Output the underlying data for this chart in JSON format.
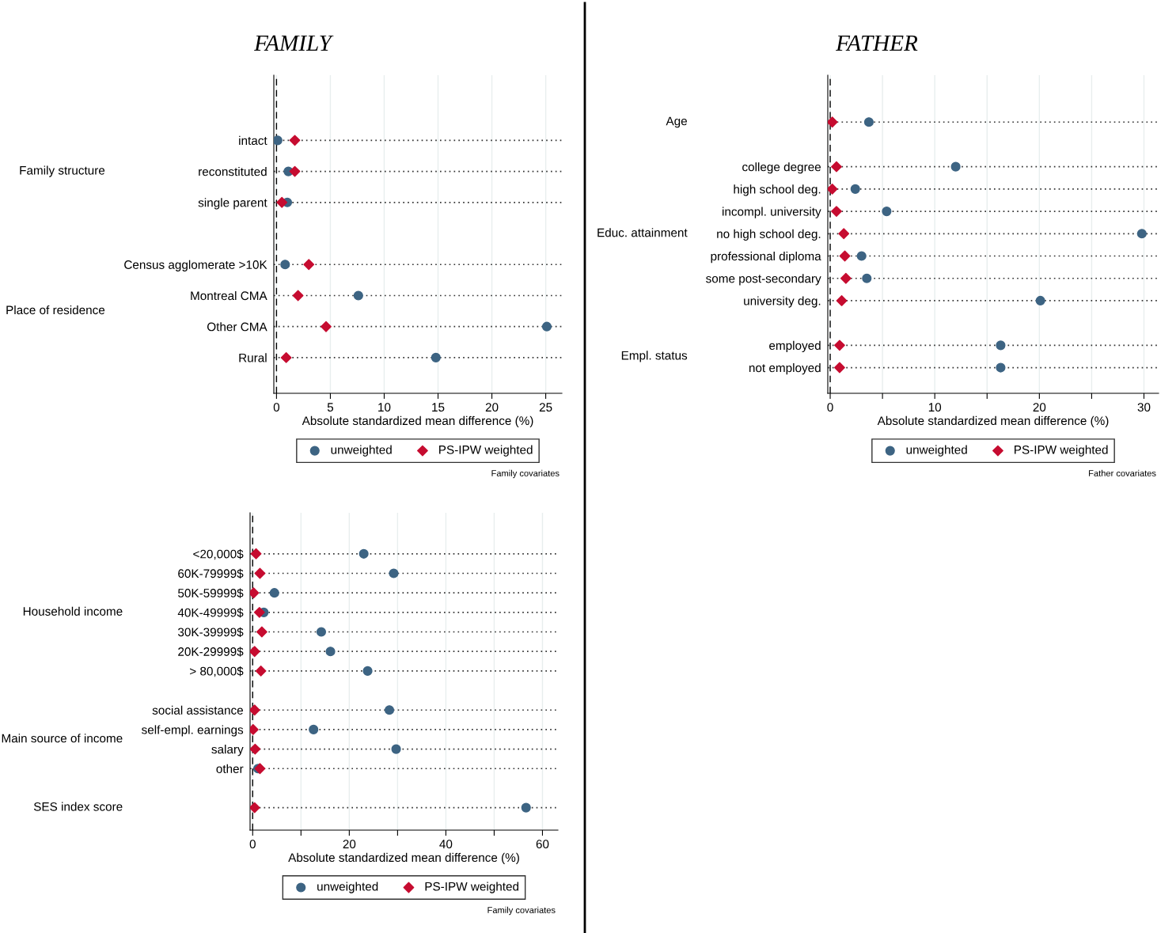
{
  "chart_data": [
    {
      "type": "scatter",
      "orientation": "horizontal",
      "title": "FAMILY",
      "xlabel": "Absolute standardized mean difference (%)",
      "categories": [
        "intact",
        "reconstituted",
        "single parent",
        null,
        "Census agglomerate >10K",
        "Montreal CMA",
        "Other CMA",
        "Rural"
      ],
      "series": [
        {
          "name": "unweighted",
          "color": "#3d6483",
          "marker": "circle",
          "values": [
            0.1,
            1.1,
            1.0,
            null,
            0.8,
            7.6,
            25.1,
            14.8
          ]
        },
        {
          "name": "PS-IPW weighted",
          "color": "#c60c30",
          "marker": "diamond",
          "values": [
            1.7,
            1.7,
            0.5,
            null,
            3.0,
            2.0,
            4.6,
            0.9
          ]
        }
      ],
      "xlim": [
        -0.25,
        26.5
      ],
      "xticks": [
        0,
        5,
        10,
        15,
        20,
        25
      ],
      "ref_lines": [
        {
          "axis": "x",
          "value": 0,
          "line_style": "dashed",
          "color": "#000000"
        }
      ],
      "grid": true,
      "legend": "bottom",
      "annotations": [
        "Family structure",
        "Place of residence",
        "Family covariates"
      ]
    },
    {
      "type": "scatter",
      "orientation": "horizontal",
      "title": "FATHER",
      "xlabel": "Absolute standardized mean difference (%)",
      "categories": [
        null,
        null,
        "college degree",
        "high school deg.",
        "incompl. university",
        "no high school deg.",
        "professional diploma",
        "some post-secondary",
        "university deg.",
        null,
        "employed",
        "not employed"
      ],
      "series": [
        {
          "name": "unweighted",
          "color": "#3d6483",
          "marker": "circle",
          "values": [
            3.7,
            null,
            12.0,
            2.4,
            5.4,
            29.8,
            3.0,
            3.5,
            20.1,
            null,
            16.3,
            16.3
          ]
        },
        {
          "name": "PS-IPW weighted",
          "color": "#c60c30",
          "marker": "diamond",
          "values": [
            0.2,
            null,
            0.6,
            0.2,
            0.6,
            1.3,
            1.4,
            1.5,
            1.1,
            null,
            0.9,
            0.9
          ]
        }
      ],
      "xlim": [
        -0.23,
        31.4
      ],
      "xticks": [
        0,
        {
          "value": 5,
          "label": null
        },
        10,
        {
          "value": 15,
          "label": null
        },
        20,
        {
          "value": 25,
          "label": null
        },
        30
      ],
      "ref_lines": [
        {
          "axis": "x",
          "value": 0,
          "line_style": "dashed",
          "color": "#000000"
        }
      ],
      "grid": true,
      "legend": "bottom",
      "annotations": [
        "Age",
        "Educ. attainment",
        "Empl. status",
        "Father covariates"
      ]
    },
    {
      "type": "scatter",
      "orientation": "horizontal",
      "xlabel": "Absolute standardized mean difference (%)",
      "categories": [
        "<20,000$",
        "60K-79999$",
        "50K-59999$",
        "40K-49999$",
        "30K-39999$",
        "20K-29999$",
        "> 80,000$",
        null,
        "social assistance",
        "self-empl. earnings",
        "salary",
        "other",
        null,
        null
      ],
      "series": [
        {
          "name": "unweighted",
          "color": "#3d6483",
          "marker": "circle",
          "values": [
            23.0,
            29.2,
            4.5,
            2.3,
            14.2,
            16.1,
            23.8,
            null,
            28.3,
            12.6,
            29.7,
            1.1,
            null,
            56.6
          ]
        },
        {
          "name": "PS-IPW weighted",
          "color": "#c60c30",
          "marker": "diamond",
          "values": [
            0.7,
            1.5,
            0.2,
            1.4,
            1.9,
            0.4,
            1.7,
            null,
            0.4,
            0.1,
            0.5,
            1.5,
            null,
            0.4
          ]
        }
      ],
      "xlim": [
        -0.54,
        63.2
      ],
      "xticks": [
        0,
        {
          "value": 10,
          "label": null
        },
        20,
        {
          "value": 30,
          "label": null
        },
        40,
        {
          "value": 50,
          "label": null
        },
        60
      ],
      "ref_lines": [
        {
          "axis": "x",
          "value": 0,
          "line_style": "dashed",
          "color": "#000000"
        }
      ],
      "grid": true,
      "legend": "bottom",
      "annotations": [
        "Household income",
        "Main source of income",
        "SES index score",
        "Family covariates"
      ]
    }
  ]
}
